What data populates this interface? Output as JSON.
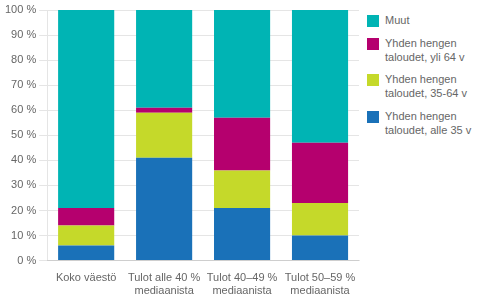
{
  "chart_data": {
    "type": "bar",
    "stacked": true,
    "categories": [
      "Koko väestö",
      "Tulot alle 40 %\nmediaanista",
      "Tulot 40–49 %\nmediaanista",
      "Tulot 50–59 %\nmediaanista"
    ],
    "series": [
      {
        "name": "Yhden hengen\ntaloudet, alle 35 v",
        "color": "#1a71b8",
        "values": [
          6,
          41,
          21,
          10
        ]
      },
      {
        "name": "Yhden hengen\ntaloudet, 35-64 v",
        "color": "#c5d92a",
        "values": [
          8,
          18,
          15,
          13
        ]
      },
      {
        "name": "Yhden hengen\ntaloudet, yli 64 v",
        "color": "#b5006e",
        "values": [
          7,
          2,
          21,
          24
        ]
      },
      {
        "name": "Muut",
        "color": "#00b4b4",
        "values": [
          79,
          39,
          43,
          53
        ]
      }
    ],
    "ylim": [
      0,
      100
    ],
    "yticks": [
      {
        "value": 0,
        "label": "0 %"
      },
      {
        "value": 10,
        "label": "10 %"
      },
      {
        "value": 20,
        "label": "20 %"
      },
      {
        "value": 30,
        "label": "30 %"
      },
      {
        "value": 40,
        "label": "40 %"
      },
      {
        "value": 50,
        "label": "50 %"
      },
      {
        "value": 60,
        "label": "60 %"
      },
      {
        "value": 70,
        "label": "70 %"
      },
      {
        "value": 80,
        "label": "80 %"
      },
      {
        "value": 90,
        "label": "90 %"
      },
      {
        "value": 100,
        "label": "100 %"
      }
    ],
    "grid": true,
    "legend": "right"
  }
}
